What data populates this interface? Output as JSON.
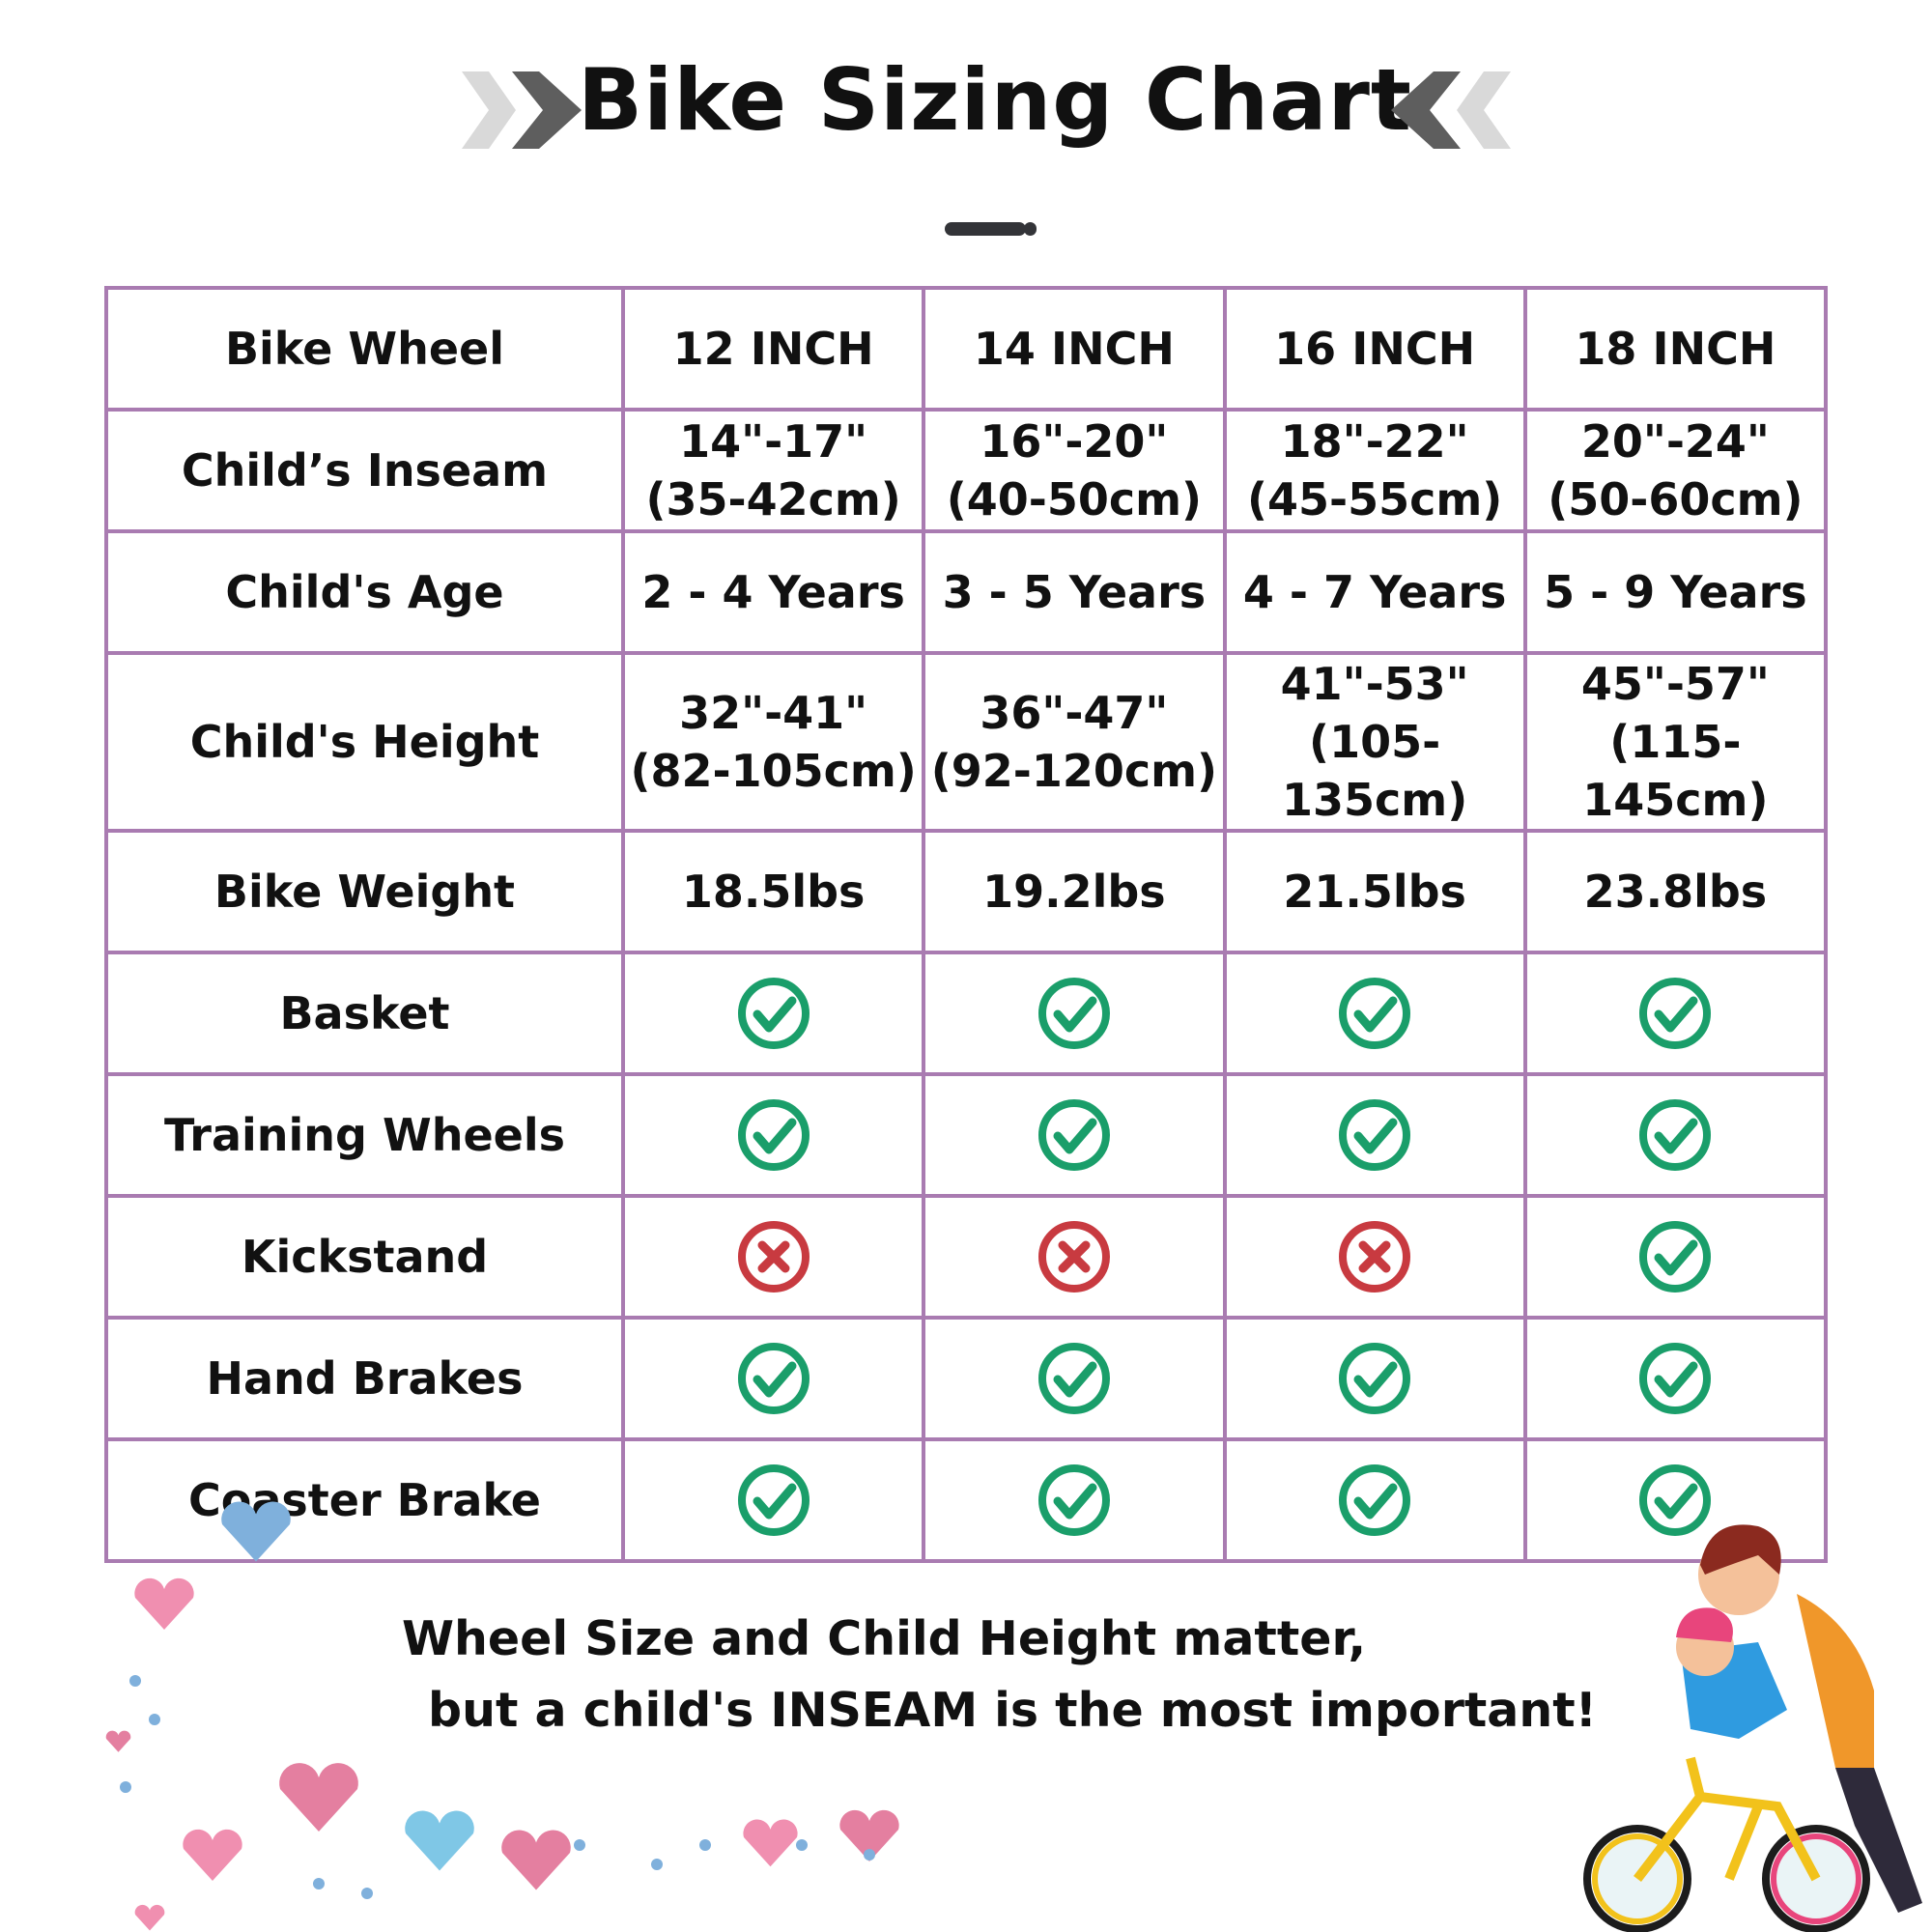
{
  "title": "Bike Sizing Chart",
  "colors": {
    "border": "#a97bb1",
    "check": "#1a9e6a",
    "cross": "#c83a40",
    "chevron_dark": "#5e5e5e",
    "chevron_light": "#d9d9d9"
  },
  "table": {
    "rows": [
      {
        "label": "Bike Wheel",
        "cells": [
          "12 INCH",
          "14 INCH",
          "16 INCH",
          "18 INCH"
        ]
      },
      {
        "label": "Child’s Inseam",
        "cells": [
          [
            "14\"-17\"",
            "(35-42cm)"
          ],
          [
            "16\"-20\"",
            "(40-50cm)"
          ],
          [
            "18\"-22\"",
            "(45-55cm)"
          ],
          [
            "20\"-24\"",
            "(50-60cm)"
          ]
        ]
      },
      {
        "label": "Child's Age",
        "cells": [
          "2 - 4 Years",
          "3 - 5 Years",
          "4 - 7 Years",
          "5 - 9 Years"
        ]
      },
      {
        "label": "Child's Height",
        "cells": [
          [
            "32\"-41\"",
            "(82-105cm)"
          ],
          [
            "36\"-47\"",
            "(92-120cm)"
          ],
          [
            "41\"-53\"",
            "(105-135cm)"
          ],
          [
            "45\"-57\"",
            "(115-145cm)"
          ]
        ]
      },
      {
        "label": "Bike Weight",
        "cells": [
          "18.5lbs",
          "19.2lbs",
          "21.5lbs",
          "23.8lbs"
        ]
      },
      {
        "label": "Basket",
        "icons": [
          "check",
          "check",
          "check",
          "check"
        ]
      },
      {
        "label": "Training Wheels",
        "icons": [
          "check",
          "check",
          "check",
          "check"
        ]
      },
      {
        "label": "Kickstand",
        "icons": [
          "cross",
          "cross",
          "cross",
          "check"
        ]
      },
      {
        "label": "Hand Brakes",
        "icons": [
          "check",
          "check",
          "check",
          "check"
        ]
      },
      {
        "label": "Coaster Brake",
        "icons": [
          "check",
          "check",
          "check",
          "check"
        ]
      }
    ]
  },
  "footer": {
    "line1": "Wheel Size and Child Height matter,",
    "line2": "but a child's INSEAM is the most important!"
  }
}
